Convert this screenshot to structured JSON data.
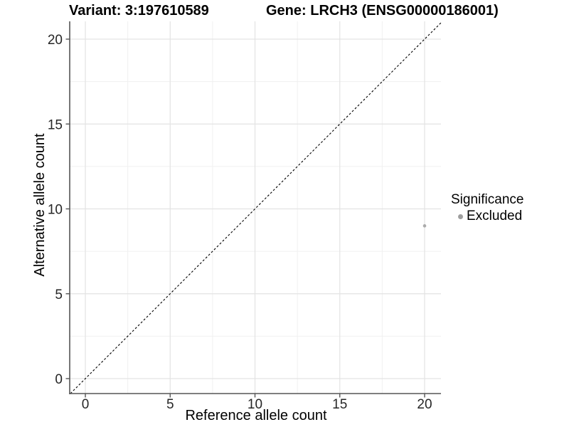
{
  "chart_data": {
    "type": "scatter",
    "title_left": "Variant: 3:197610589",
    "title_right": "Gene: LRCH3 (ENSG00000186001)",
    "xlabel": "Reference allele count",
    "ylabel": "Alternative allele count",
    "xticks": [
      0,
      5,
      10,
      15,
      20
    ],
    "yticks": [
      0,
      5,
      10,
      15,
      20
    ],
    "minor_step": 2.5,
    "xlim": [
      -0.9,
      21
    ],
    "ylim": [
      -0.9,
      21
    ],
    "grid": "major+minor",
    "reference_line": {
      "type": "identity y=x",
      "style": "dashed",
      "color": "#000000"
    },
    "points": [
      {
        "x": 20,
        "y": 9,
        "series": "Excluded"
      }
    ],
    "legend": {
      "title": "Significance",
      "position": "right",
      "items": [
        {
          "label": "Excluded",
          "color": "#9e9e9e"
        }
      ]
    },
    "colors": {
      "point": "#ababab",
      "axis": "#555555",
      "grid_major": "#e3e3e3",
      "grid_minor": "#f0f0f0",
      "dashed_line": "#000000"
    }
  }
}
